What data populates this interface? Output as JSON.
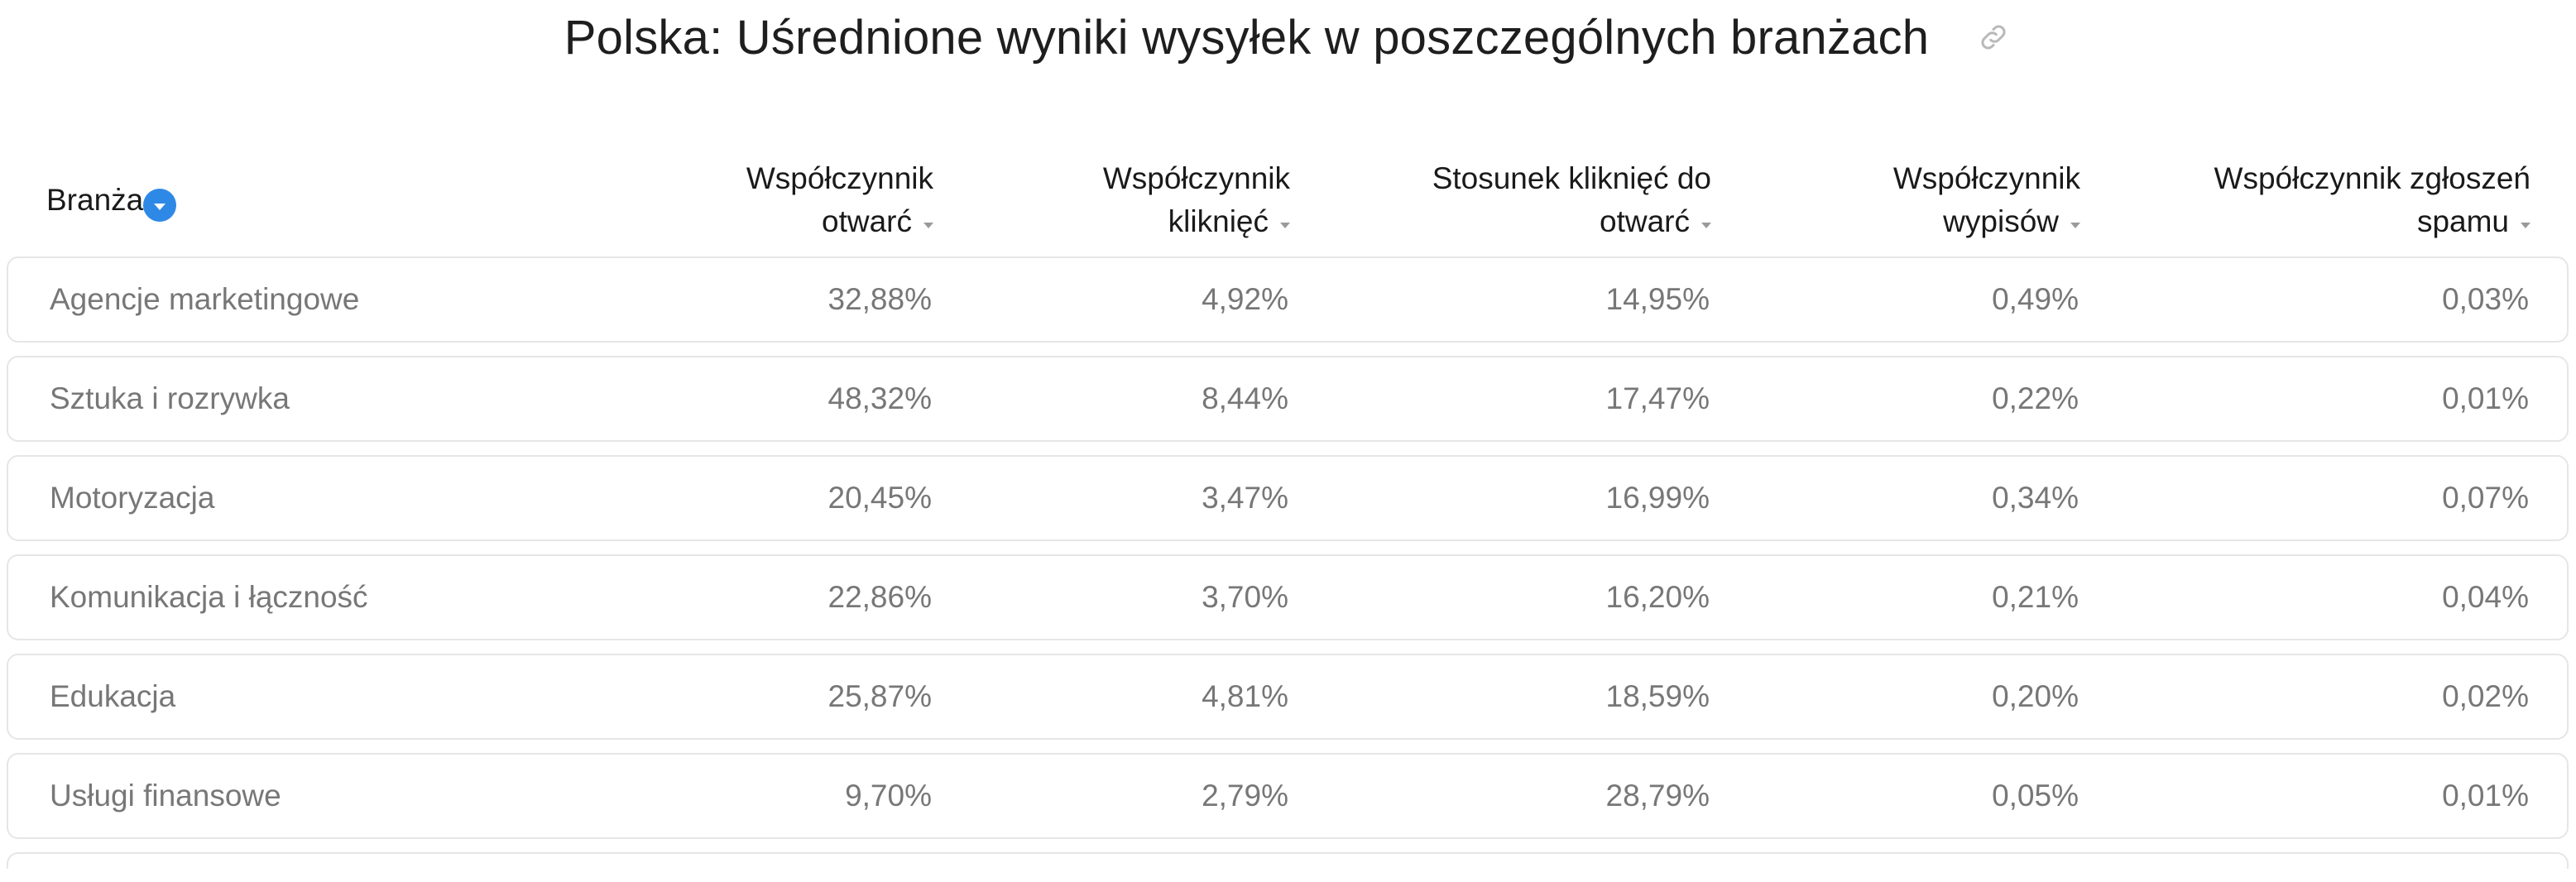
{
  "title": "Polska: Uśrednione wyniki wysyłek w poszczególnych branżach",
  "icons": {
    "link": "link-icon",
    "sort_active": "sort-down-circle-icon",
    "sort_caret": "caret-down-icon"
  },
  "colors": {
    "accent": "#2e89e6",
    "row_border": "#e6e6e6",
    "cell_text": "#777777",
    "header_text": "#1a1a1a"
  },
  "table": {
    "headers": {
      "industry": "Branża",
      "open_rate": [
        "Współczynnik",
        "otwarć"
      ],
      "click_rate": [
        "Współczynnik",
        "kliknięć"
      ],
      "click_to_open": [
        "Stosunek kliknięć do",
        "otwarć"
      ],
      "unsubscribe_rate": [
        "Współczynnik",
        "wypisów"
      ],
      "spam_rate": [
        "Współczynnik zgłoszeń",
        "spamu"
      ]
    },
    "rows": [
      {
        "industry": "Agencje marketingowe",
        "open_rate": "32,88%",
        "click_rate": "4,92%",
        "click_to_open": "14,95%",
        "unsubscribe_rate": "0,49%",
        "spam_rate": "0,03%"
      },
      {
        "industry": "Sztuka i rozrywka",
        "open_rate": "48,32%",
        "click_rate": "8,44%",
        "click_to_open": "17,47%",
        "unsubscribe_rate": "0,22%",
        "spam_rate": "0,01%"
      },
      {
        "industry": "Motoryzacja",
        "open_rate": "20,45%",
        "click_rate": "3,47%",
        "click_to_open": "16,99%",
        "unsubscribe_rate": "0,34%",
        "spam_rate": "0,07%"
      },
      {
        "industry": "Komunikacja i łączność",
        "open_rate": "22,86%",
        "click_rate": "3,70%",
        "click_to_open": "16,20%",
        "unsubscribe_rate": "0,21%",
        "spam_rate": "0,04%"
      },
      {
        "industry": "Edukacja",
        "open_rate": "25,87%",
        "click_rate": "4,81%",
        "click_to_open": "18,59%",
        "unsubscribe_rate": "0,20%",
        "spam_rate": "0,02%"
      },
      {
        "industry": "Usługi finansowe",
        "open_rate": "9,70%",
        "click_rate": "2,79%",
        "click_to_open": "28,79%",
        "unsubscribe_rate": "0,05%",
        "spam_rate": "0,01%"
      }
    ]
  }
}
